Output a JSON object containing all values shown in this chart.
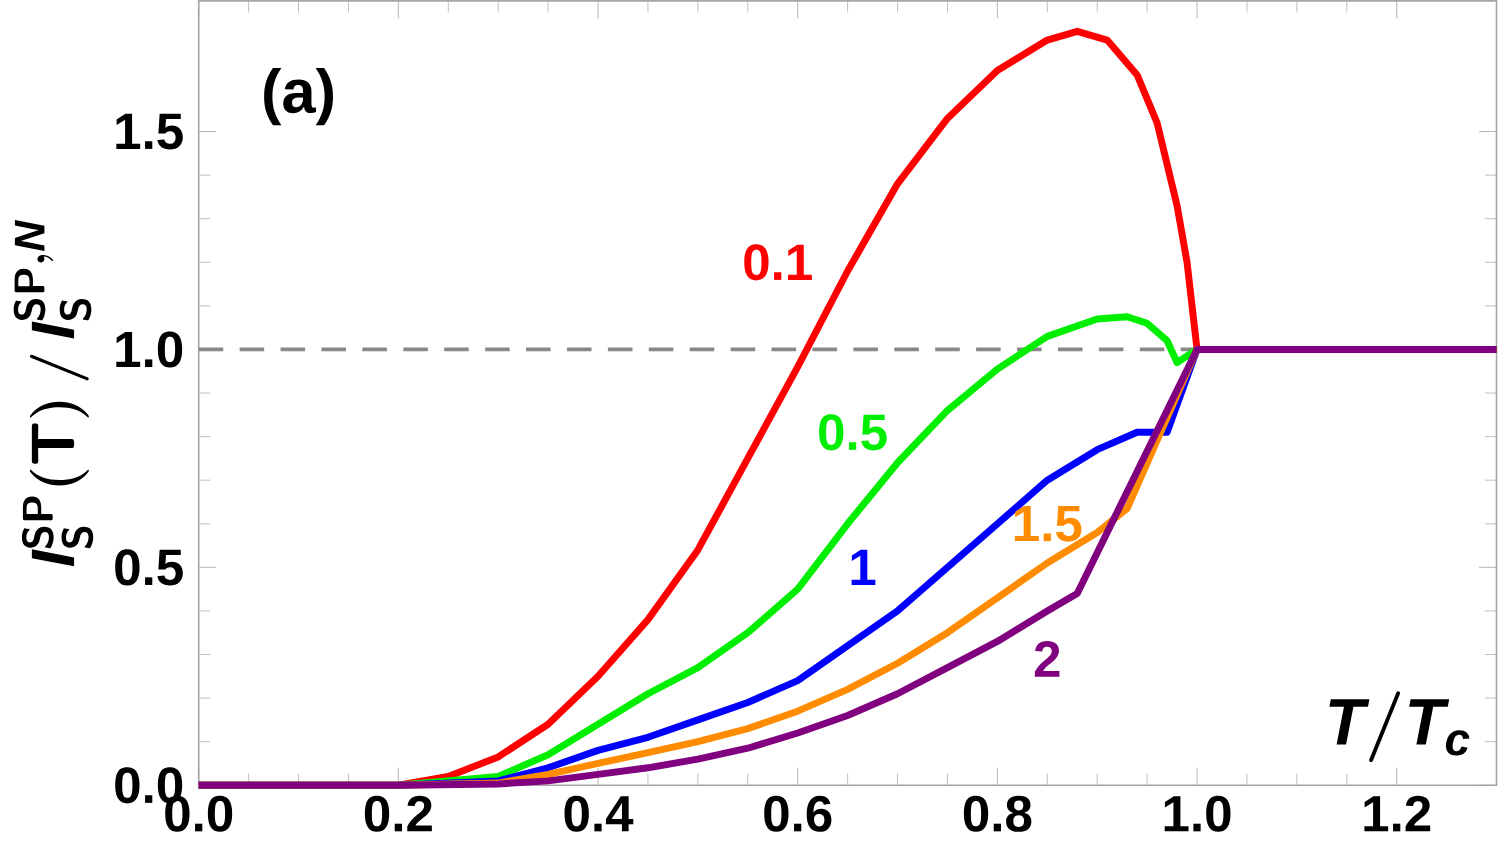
{
  "chart_data": {
    "type": "line",
    "xlabel": "\\mathbf{\\mathit{T/T_c}}",
    "ylabel": "\\mathit{I}_{\\mathsf{S}}^{\\mathsf{SP}}\\mathsf{(T)}\\,/\\,\\mathit{I}_{\\mathsf{S}}^{\\mathsf{SP},\\mathit{N}}",
    "annotations": [
      "(a)"
    ],
    "xlim": [
      0,
      1.3
    ],
    "ylim": [
      0,
      1.8
    ],
    "xticks": [
      {
        "value": 0,
        "label": "0.0"
      },
      0.2,
      0.4,
      0.6,
      0.8,
      {
        "value": 1,
        "label": "1.0"
      },
      1.2
    ],
    "yticks": [
      {
        "value": 0,
        "label": "0.0"
      },
      0.5,
      {
        "value": 1,
        "label": "1.0"
      },
      1.5
    ],
    "grid": false,
    "legend": false,
    "marker": "none",
    "line_style": "solid",
    "ref_lines": [
      {
        "axis": "y",
        "value": 1,
        "color": "#888888",
        "line_style": "dashed"
      }
    ],
    "series": [
      {
        "name": "0.1",
        "color": "#ff0000",
        "x": [
          0,
          0.2,
          0.25,
          0.3,
          0.35,
          0.4,
          0.45,
          0.5,
          0.55,
          0.6,
          0.65,
          0.7,
          0.75,
          0.8,
          0.85,
          0.88,
          0.91,
          0.94,
          0.96,
          0.98,
          0.99,
          1.0,
          1.3
        ],
        "values": [
          0,
          0,
          0.02,
          0.065,
          0.14,
          0.25,
          0.38,
          0.54,
          0.75,
          0.96,
          1.18,
          1.38,
          1.53,
          1.64,
          1.71,
          1.73,
          1.71,
          1.63,
          1.52,
          1.33,
          1.2,
          1.0,
          1.0
        ]
      },
      {
        "name": "0.5",
        "color": "#00ee00",
        "x": [
          0,
          0.2,
          0.3,
          0.35,
          0.4,
          0.45,
          0.5,
          0.55,
          0.6,
          0.65,
          0.7,
          0.75,
          0.8,
          0.85,
          0.9,
          0.93,
          0.95,
          0.97,
          0.98,
          1.0,
          1.3
        ],
        "values": [
          0,
          0,
          0.02,
          0.07,
          0.14,
          0.21,
          0.27,
          0.35,
          0.45,
          0.6,
          0.74,
          0.86,
          0.955,
          1.03,
          1.07,
          1.075,
          1.06,
          1.02,
          0.97,
          1.0,
          1.0
        ]
      },
      {
        "name": "1",
        "color": "#0000ff",
        "x": [
          0,
          0.2,
          0.3,
          0.35,
          0.4,
          0.45,
          0.5,
          0.55,
          0.6,
          0.65,
          0.7,
          0.75,
          0.8,
          0.85,
          0.9,
          0.94,
          0.97,
          1.0,
          1.3
        ],
        "values": [
          0,
          0,
          0.01,
          0.04,
          0.08,
          0.11,
          0.15,
          0.19,
          0.24,
          0.32,
          0.4,
          0.5,
          0.6,
          0.7,
          0.77,
          0.81,
          0.81,
          1.0,
          1.0
        ]
      },
      {
        "name": "1.5",
        "color": "#ff8c00",
        "x": [
          0,
          0.2,
          0.3,
          0.35,
          0.4,
          0.45,
          0.5,
          0.55,
          0.6,
          0.65,
          0.7,
          0.75,
          0.8,
          0.85,
          0.9,
          0.93,
          1.0,
          1.3
        ],
        "values": [
          0,
          0,
          0.005,
          0.025,
          0.05,
          0.075,
          0.1,
          0.13,
          0.17,
          0.22,
          0.28,
          0.35,
          0.43,
          0.51,
          0.58,
          0.635,
          1.0,
          1.0
        ]
      },
      {
        "name": "2",
        "color": "#800080",
        "x": [
          0,
          0.2,
          0.3,
          0.35,
          0.4,
          0.45,
          0.5,
          0.55,
          0.6,
          0.65,
          0.7,
          0.75,
          0.8,
          0.85,
          0.88,
          1.0,
          1.3
        ],
        "values": [
          0,
          0,
          0.003,
          0.01,
          0.025,
          0.04,
          0.06,
          0.085,
          0.12,
          0.16,
          0.21,
          0.27,
          0.33,
          0.4,
          0.44,
          1.0,
          1.0
        ]
      }
    ]
  }
}
